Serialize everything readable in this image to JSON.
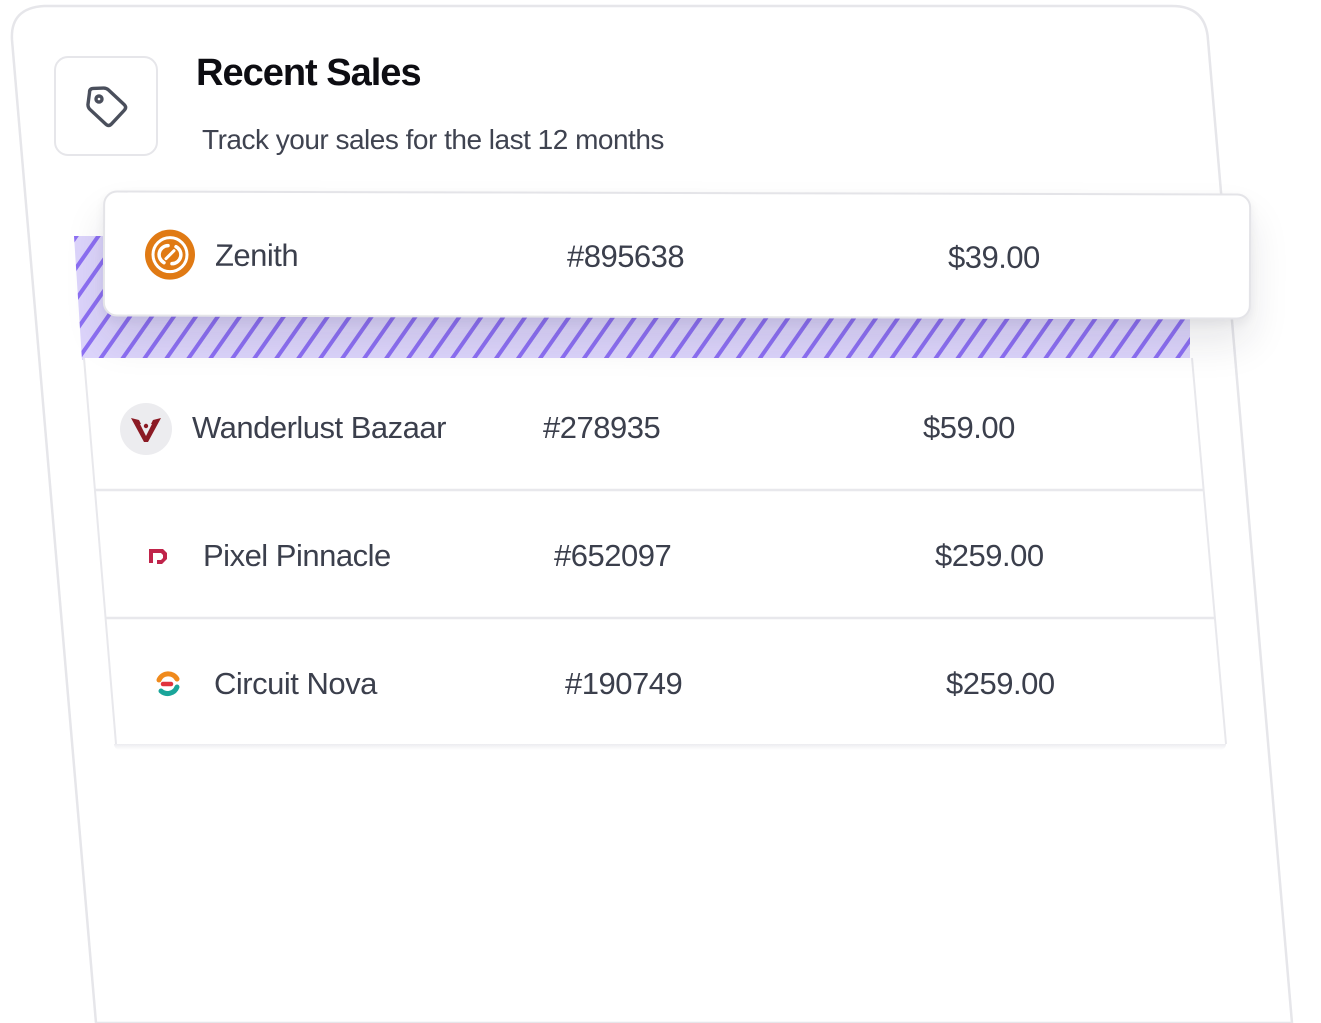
{
  "header": {
    "title": "Recent Sales",
    "subtitle": "Track your sales for the last 12 months",
    "icon": "tag-icon"
  },
  "sales": [
    {
      "name": "Zenith",
      "order_id": "#895638",
      "amount": "$39.00",
      "logo": "zenith-logo-icon",
      "highlighted": true
    },
    {
      "name": "Wanderlust Bazaar",
      "order_id": "#278935",
      "amount": "$59.00",
      "logo": "wanderlust-logo-icon",
      "highlighted": false
    },
    {
      "name": "Pixel Pinnacle",
      "order_id": "#652097",
      "amount": "$259.00",
      "logo": "pixel-pinnacle-logo-icon",
      "highlighted": false
    },
    {
      "name": "Circuit Nova",
      "order_id": "#190749",
      "amount": "$259.00",
      "logo": "circuit-nova-logo-icon",
      "highlighted": false
    }
  ],
  "colors": {
    "accent_hatch": "#7c5cf0",
    "hatch_bg": "#d9d0fb",
    "zenith_orange": "#e07a14",
    "wanderlust_red": "#8b1a24",
    "pixel_pink": "#c0244a",
    "circuit_orange": "#f08a1c",
    "circuit_teal": "#1aa59a",
    "circuit_red": "#e0323c"
  }
}
